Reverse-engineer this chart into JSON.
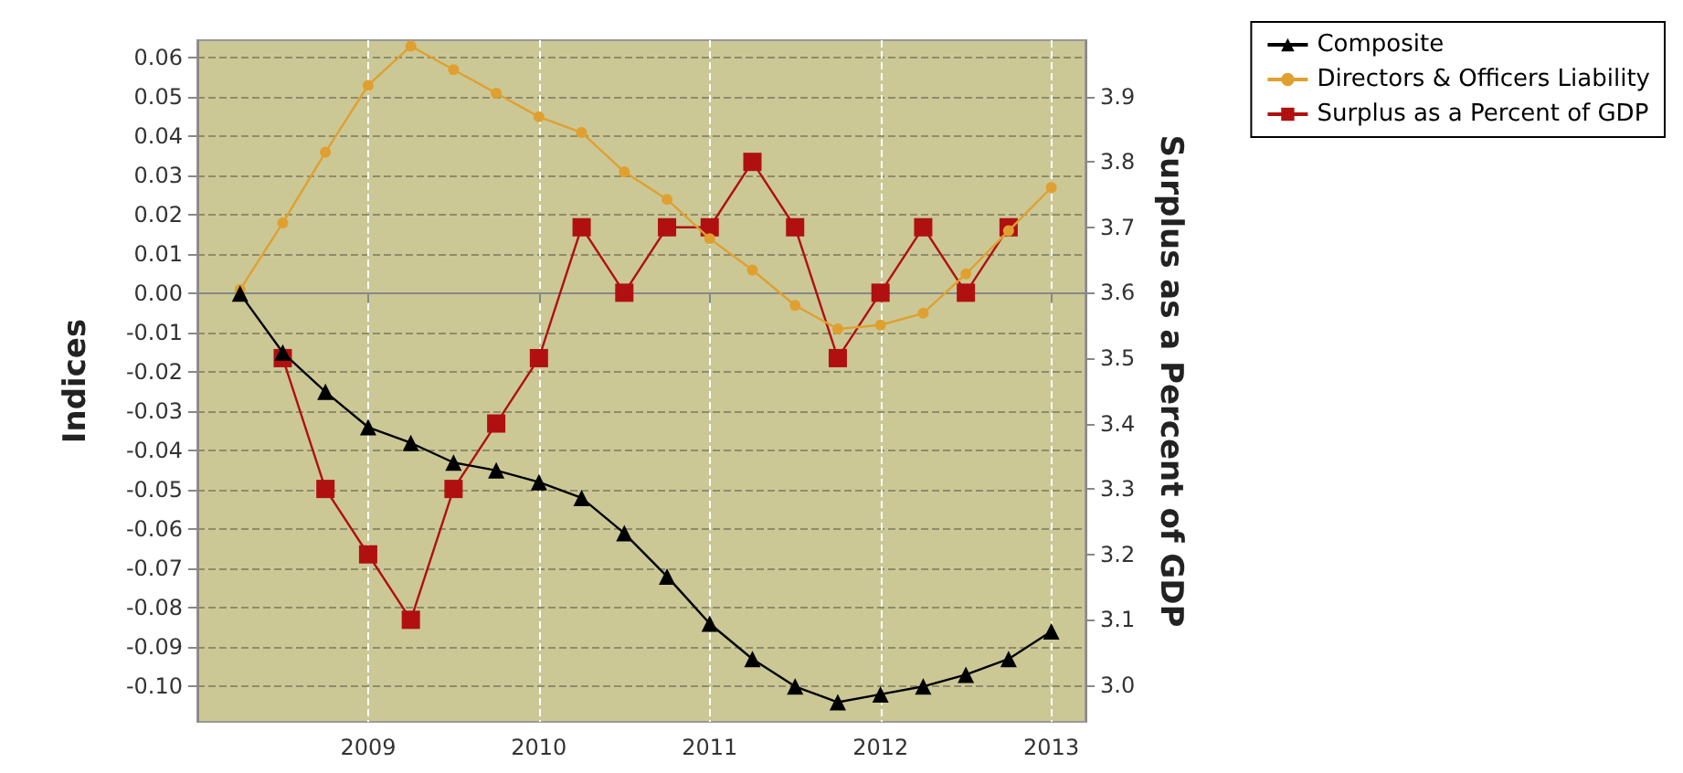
{
  "chart_data": {
    "type": "line",
    "ylabel": "Indices",
    "y2label": "Surplus as a Percent of GDP",
    "xlim": [
      2008,
      2013.2
    ],
    "xticks": [
      2009,
      2010,
      2011,
      2012,
      2013
    ],
    "ylim": [
      -0.109,
      0.0645
    ],
    "yticks": [
      {
        "value": -0.1,
        "label": "-0.10"
      },
      -0.09,
      -0.08,
      -0.07,
      -0.06,
      -0.05,
      -0.04,
      -0.03,
      -0.02,
      -0.01,
      {
        "value": 0,
        "label": "0.00"
      },
      0.01,
      0.02,
      0.03,
      0.04,
      0.05,
      0.06
    ],
    "y2lim": [
      2.944,
      3.986
    ],
    "y2ticks": [
      {
        "value": 3,
        "label": "3.0"
      },
      3.1,
      3.2,
      3.3,
      3.4,
      3.5,
      3.6,
      3.7,
      3.8,
      3.9
    ],
    "grid": true,
    "legend": "top right",
    "series": [
      {
        "name": "Composite",
        "color": "#000000",
        "marker": "triangle",
        "x": [
          2008.25,
          2008.5,
          2008.75,
          2009,
          2009.25,
          2009.5,
          2009.75,
          2010,
          2010.25,
          2010.5,
          2010.75,
          2011,
          2011.25,
          2011.5,
          2011.75,
          2012,
          2012.25,
          2012.5,
          2012.75,
          2013
        ],
        "values": [
          0.0,
          -0.015,
          -0.025,
          -0.034,
          -0.038,
          -0.043,
          -0.045,
          -0.048,
          -0.052,
          -0.061,
          -0.072,
          -0.084,
          -0.093,
          -0.1,
          -0.104,
          -0.102,
          -0.1,
          -0.097,
          -0.093,
          -0.086
        ]
      },
      {
        "name": "Directors & Officers Liability",
        "color": "#e0a030",
        "marker": "circle",
        "x": [
          2008.25,
          2008.5,
          2008.75,
          2009,
          2009.25,
          2009.5,
          2009.75,
          2010,
          2010.25,
          2010.5,
          2010.75,
          2011,
          2011.25,
          2011.5,
          2011.75,
          2012,
          2012.25,
          2012.5,
          2012.75,
          2013
        ],
        "values": [
          0.001,
          0.018,
          0.036,
          0.053,
          0.063,
          0.057,
          0.051,
          0.045,
          0.041,
          0.031,
          0.024,
          0.014,
          0.006,
          -0.003,
          -0.009,
          -0.008,
          -0.005,
          0.005,
          0.016,
          0.027
        ]
      },
      {
        "name": "Surplus as a Percent of GDP",
        "color": "#b01010",
        "marker": "square",
        "axis": "y2",
        "x": [
          2008.5,
          2008.75,
          2009,
          2009.25,
          2009.5,
          2009.75,
          2010,
          2010.25,
          2010.5,
          2010.75,
          2011,
          2011.25,
          2011.5,
          2011.75,
          2012,
          2012.25,
          2012.5,
          2012.75
        ],
        "values": [
          3.5,
          3.3,
          3.2,
          3.1,
          3.3,
          3.4,
          3.5,
          3.7,
          3.6,
          3.7,
          3.7,
          3.8,
          3.7,
          3.5,
          3.6,
          3.7,
          3.6,
          3.7
        ]
      }
    ]
  }
}
